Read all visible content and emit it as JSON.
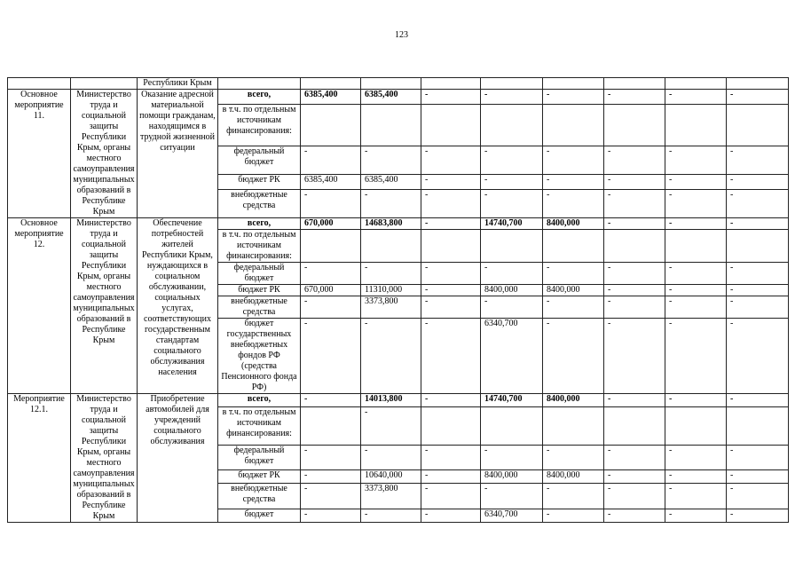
{
  "page_number": "123",
  "top_row_text": "Республики Крым",
  "blocks": [
    {
      "activity": "Основное мероприятие 11.",
      "executor": "Министерство труда и социальной защиты Республики Крым, органы местного самоуправления муниципальных образований в Республике Крым",
      "name": "Оказание адресной материальной помощи гражданам, находящимся в трудной жизненной ситуации",
      "rows": [
        {
          "source": "всего,",
          "bold": true,
          "values": [
            "6385,400",
            "6385,400",
            "-",
            "-",
            "-",
            "-",
            "-",
            "-"
          ]
        },
        {
          "source": "в т.ч. по отдельным источникам финансирования:",
          "values": [
            "",
            "",
            "",
            "",
            "",
            "",
            "",
            ""
          ]
        },
        {
          "source": "федеральный бюджет",
          "values": [
            "-",
            "-",
            "-",
            "-",
            "-",
            "-",
            "-",
            "-"
          ]
        },
        {
          "source": "бюджет РК",
          "values": [
            "6385,400",
            "6385,400",
            "-",
            "-",
            "-",
            "-",
            "-",
            "-"
          ]
        },
        {
          "source": "внебюджетные средства",
          "values": [
            "-",
            "-",
            "-",
            "-",
            "-",
            "-",
            "-",
            "-"
          ]
        }
      ]
    },
    {
      "activity": "Основное мероприятие 12.",
      "executor": "Министерство труда и социальной защиты Республики Крым, органы местного самоуправления муниципальных образований в Республике Крым",
      "name": "Обеспечение потребностей жителей Республики Крым, нуждающихся в социальном обслуживании, социальных услугах, соответствующих государственным стандартам социального обслуживания населения",
      "rows": [
        {
          "source": "всего,",
          "bold": true,
          "values": [
            "670,000",
            "14683,800",
            "-",
            "14740,700",
            "8400,000",
            "-",
            "-",
            "-"
          ]
        },
        {
          "source": "в т.ч. по отдельным источникам финансирования:",
          "values": [
            "",
            "",
            "",
            "",
            "",
            "",
            "",
            ""
          ]
        },
        {
          "source": "федеральный бюджет",
          "values": [
            "-",
            "-",
            "-",
            "-",
            "-",
            "-",
            "-",
            "-"
          ]
        },
        {
          "source": "бюджет РК",
          "values": [
            "670,000",
            "11310,000",
            "-",
            "8400,000",
            "8400,000",
            "-",
            "-",
            "-"
          ]
        },
        {
          "source": "внебюджетные средства",
          "values": [
            "-",
            "3373,800",
            "-",
            "-",
            "-",
            "-",
            "-",
            "-"
          ]
        },
        {
          "source": "бюджет государственных внебюджетных фондов РФ (средства Пенсионного фонда РФ)",
          "values": [
            "-",
            "-",
            "-",
            "6340,700",
            "-",
            "-",
            "-",
            "-"
          ]
        }
      ]
    },
    {
      "activity": "Мероприятие 12.1.",
      "executor": "Министерство труда и социальной защиты Республики Крым, органы местного самоуправления муниципальных образований в Республике Крым",
      "name": "Приобретение автомобилей для учреждений социального обслуживания",
      "rows": [
        {
          "source": "всего,",
          "bold": true,
          "values": [
            "-",
            "14013,800",
            "-",
            "14740,700",
            "8400,000",
            "-",
            "-",
            "-"
          ]
        },
        {
          "source": "в т.ч. по отдельным источникам финансирования:",
          "values": [
            "",
            "-",
            "",
            "",
            "",
            "",
            "",
            ""
          ]
        },
        {
          "source": "федеральный бюджет",
          "values": [
            "-",
            "-",
            "-",
            "-",
            "-",
            "-",
            "-",
            "-"
          ]
        },
        {
          "source": "бюджет РК",
          "values": [
            "-",
            "10640,000",
            "-",
            "8400,000",
            "8400,000",
            "-",
            "-",
            "-"
          ]
        },
        {
          "source": "внебюджетные средства",
          "values": [
            "-",
            "3373,800",
            "-",
            "-",
            "-",
            "-",
            "-",
            "-"
          ]
        },
        {
          "source": "бюджет",
          "values": [
            "-",
            "-",
            "-",
            "6340,700",
            "-",
            "-",
            "-",
            "-"
          ]
        }
      ]
    }
  ]
}
